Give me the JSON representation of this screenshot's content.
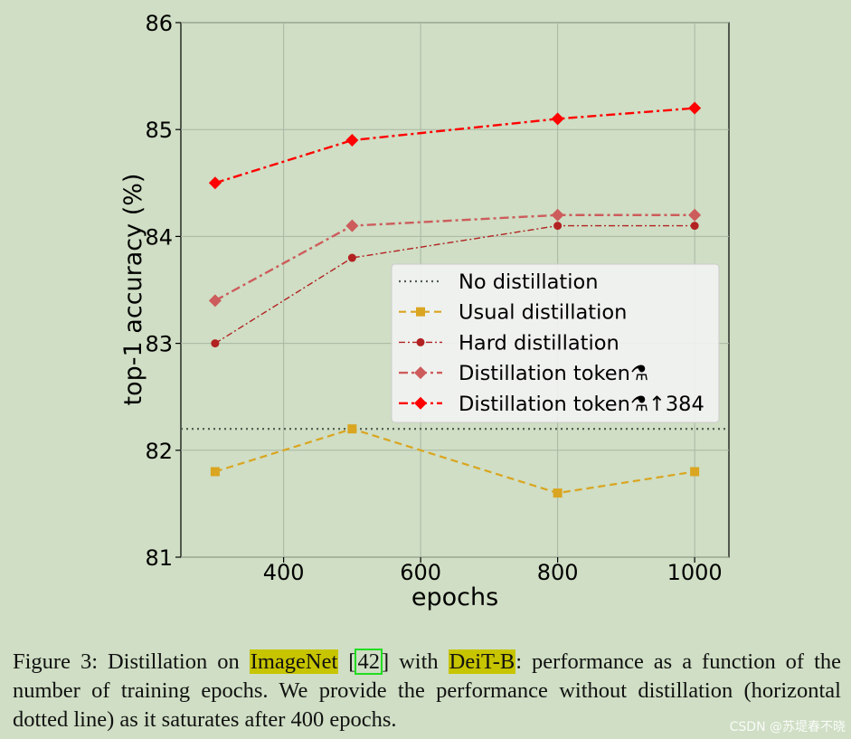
{
  "chart_data": {
    "type": "line",
    "xlabel": "epochs",
    "ylabel": "top-1 accuracy (%)",
    "xlim": [
      250,
      1050
    ],
    "ylim": [
      81,
      86
    ],
    "xticks": [
      "400",
      "600",
      "800",
      "1000"
    ],
    "yticks": [
      "81",
      "82",
      "83",
      "84",
      "85",
      "86"
    ],
    "grid": true,
    "legend_position": "center-right",
    "series": [
      {
        "name": "No distillation",
        "style": "dotted",
        "color": "#555f55",
        "marker": "none",
        "hline": 82.2,
        "x": [],
        "y": []
      },
      {
        "name": "Usual distillation",
        "style": "dashed",
        "color": "#daa520",
        "marker": "square",
        "x": [
          300,
          500,
          800,
          1000
        ],
        "y": [
          81.8,
          82.2,
          81.6,
          81.8
        ]
      },
      {
        "name": "Hard distillation",
        "style": "dashdot-thin",
        "color": "#b22222",
        "marker": "circle",
        "x": [
          300,
          500,
          800,
          1000
        ],
        "y": [
          83.0,
          83.8,
          84.1,
          84.1
        ]
      },
      {
        "name": "Distillation token⚗",
        "style": "dashdot",
        "color": "#cd5c5c",
        "marker": "diamond",
        "x": [
          300,
          500,
          800,
          1000
        ],
        "y": [
          83.4,
          84.1,
          84.2,
          84.2
        ]
      },
      {
        "name": "Distillation token⚗↑384",
        "style": "dashdot-bold",
        "color": "#ff0000",
        "marker": "diamond",
        "x": [
          300,
          500,
          800,
          1000
        ],
        "y": [
          84.5,
          84.9,
          85.1,
          85.2
        ]
      }
    ]
  },
  "caption": {
    "prefix": "Figure 3: Distillation on ",
    "dataset": "ImageNet",
    "ref_open": " [",
    "ref": "42",
    "ref_close": "] with ",
    "model": "DeiT-B",
    "rest": ": performance as a function of the number of training epochs. We provide the performance without distillation (horizontal dotted line) as it saturates after 400 epochs."
  },
  "watermark": "CSDN @苏堤春不晓"
}
